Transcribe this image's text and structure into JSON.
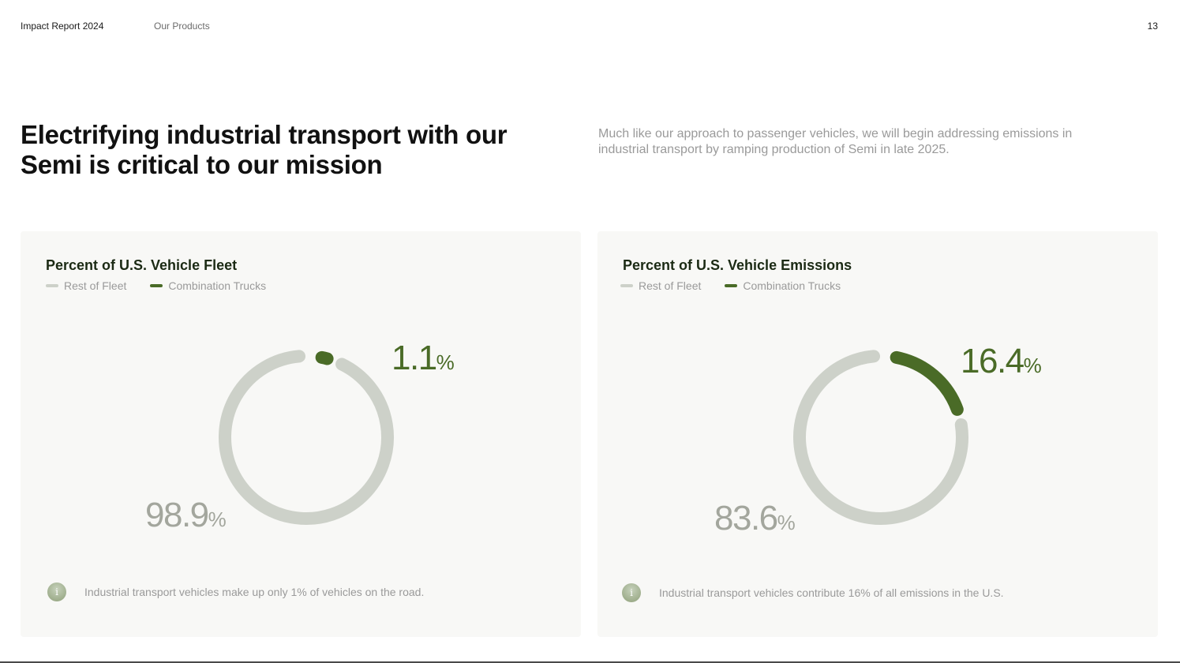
{
  "header": {
    "report_title": "Impact Report 2024",
    "section": "Our Products",
    "page_number": "13"
  },
  "headline": "Electrifying industrial transport with our Semi is critical to our mission",
  "intro": "Much like our approach to passenger vehicles, we will begin addressing emissions in industrial transport by ramping production of Semi in late 2025.",
  "colors": {
    "rest": "#cdd1c9",
    "trucks": "#4a6b27",
    "rest_text": "#a3a69d"
  },
  "icons": {
    "info": "info-icon"
  },
  "chart_data": [
    {
      "type": "pie",
      "title": "Percent of U.S. Vehicle Fleet",
      "legend": [
        "Rest of Fleet",
        "Combination Trucks"
      ],
      "slices": [
        {
          "label": "Rest of Fleet",
          "value": 98.9,
          "display": "98.9",
          "unit": "%"
        },
        {
          "label": "Combination Trucks",
          "value": 1.1,
          "display": "1.1",
          "unit": "%"
        }
      ],
      "note": "Industrial transport vehicles make up only 1% of vehicles on the road."
    },
    {
      "type": "pie",
      "title": "Percent of U.S. Vehicle Emissions",
      "legend": [
        "Rest of Fleet",
        "Combination Trucks"
      ],
      "slices": [
        {
          "label": "Rest of Fleet",
          "value": 83.6,
          "display": "83.6",
          "unit": "%"
        },
        {
          "label": "Combination Trucks",
          "value": 16.4,
          "display": "16.4",
          "unit": "%"
        }
      ],
      "note": "Industrial transport vehicles contribute 16% of all emissions in the U.S."
    }
  ]
}
